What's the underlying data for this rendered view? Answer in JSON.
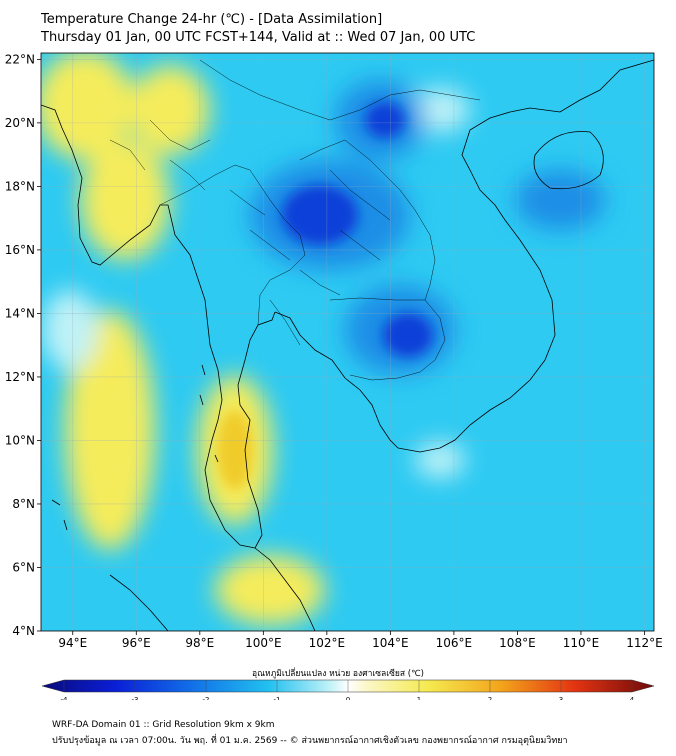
{
  "title": {
    "line1": "Temperature Change 24-hr (℃) - [Data Assimilation]",
    "line2": "Thursday 01 Jan, 00 UTC FCST+144, Valid at :: Wed 07 Jan, 00 UTC"
  },
  "map": {
    "lon_range": [
      93,
      112.3
    ],
    "lat_range": [
      4,
      22.2
    ],
    "lat_ticks": [
      "22°N",
      "20°N",
      "18°N",
      "16°N",
      "14°N",
      "12°N",
      "10°N",
      "8°N",
      "6°N",
      "4°N"
    ],
    "lon_ticks": [
      "94°E",
      "96°E",
      "98°E",
      "100°E",
      "102°E",
      "104°E",
      "106°E",
      "108°E",
      "110°E",
      "112°E"
    ]
  },
  "colorbar": {
    "label": "อุณหภูมิเปลี่ยนแปลง หน่วย องศาเซลเซียส (℃)",
    "ticks": [
      "-4",
      "-3",
      "-2",
      "-1",
      "0",
      "1",
      "2",
      "3",
      "4"
    ],
    "range": [
      -4,
      4
    ]
  },
  "footer": {
    "line1": "WRF-DA Domain 01 :: Grid Resolution 9km x 9km",
    "line2": "ปรับปรุงข้อมูล ณ เวลา 07:00น. วัน พฤ. ที่ 01 ม.ค. 2569 -- © ส่วนพยากรณ์อากาศเชิงตัวเลข กองพยากรณ์อากาศ กรมอุตุนิยมวิทยา"
  },
  "colors": {
    "base": "#2ecaf2",
    "warm": "#f5ec5c",
    "deep_warm": "#f0cc2a",
    "cool": "#1e8ee6",
    "deep_cool": "#0c3fd8",
    "pale": "#bff2f7",
    "coast": "#000000"
  }
}
